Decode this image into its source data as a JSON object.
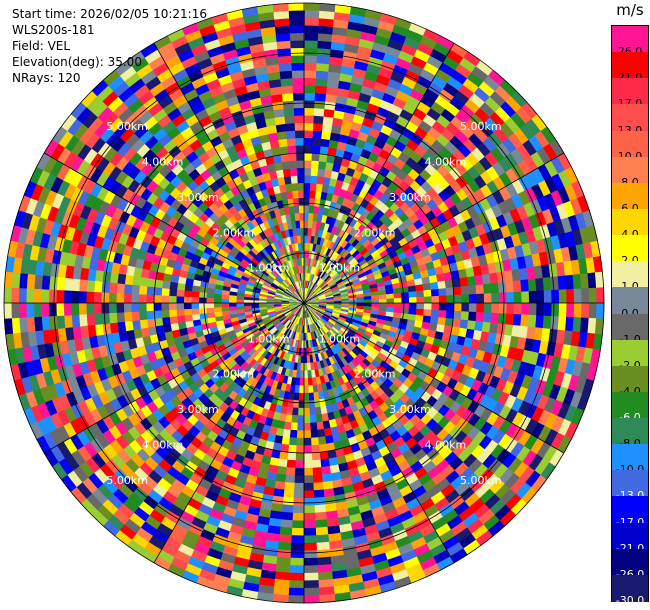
{
  "header": {
    "start_time_label": "Start time:",
    "start_time": "2026/02/05 10:21:16",
    "instrument": "WLS200s-181",
    "field_label": "Field:",
    "field": "VEL",
    "elevation_label": "Elevation(deg):",
    "elevation": "35.00",
    "nrays_label": "NRays:",
    "nrays": "120"
  },
  "colorbar": {
    "unit": "m/s",
    "levels": [
      {
        "label": "26.0",
        "color": "#ff1493"
      },
      {
        "label": "21.0",
        "color": "#ff0000"
      },
      {
        "label": "17.0",
        "color": "#ff2a4a"
      },
      {
        "label": "13.0",
        "color": "#ff4d4d"
      },
      {
        "label": "10.0",
        "color": "#ff6347"
      },
      {
        "label": "8.0",
        "color": "#ff7f50"
      },
      {
        "label": "6.0",
        "color": "#ffa500"
      },
      {
        "label": "4.0",
        "color": "#ffd700"
      },
      {
        "label": "2.0",
        "color": "#ffff00"
      },
      {
        "label": "1.0",
        "color": "#f0f0a0"
      },
      {
        "label": "0.0",
        "color": "#778899"
      },
      {
        "label": "-1.0",
        "color": "#696969"
      },
      {
        "label": "-2.0",
        "color": "#9acd32"
      },
      {
        "label": "-4.0",
        "color": "#6b8e23"
      },
      {
        "label": "-6.0",
        "color": "#228b22"
      },
      {
        "label": "-8.0",
        "color": "#2e8b57"
      },
      {
        "label": "-10.0",
        "color": "#1e90ff"
      },
      {
        "label": "-13.0",
        "color": "#4169e1"
      },
      {
        "label": "-17.0",
        "color": "#0000ff"
      },
      {
        "label": "-21.0",
        "color": "#0000cd"
      },
      {
        "label": "-26.0",
        "color": "#000080"
      },
      {
        "label": "-30.0",
        "color": "#191970"
      }
    ]
  },
  "chart_data": {
    "type": "ppi",
    "field": "VEL",
    "n_rays": 120,
    "range_max_km": 6.0,
    "range_rings_km": [
      1.0,
      2.0,
      3.0,
      4.0,
      5.0,
      6.0
    ],
    "range_ring_labels": [
      "1.00km",
      "2.00km",
      "3.00km",
      "4.00km",
      "5.00km"
    ],
    "spokes_deg": [
      0,
      30,
      60,
      90,
      120,
      150,
      180,
      210,
      240,
      270,
      300,
      330
    ],
    "vmin": -30.0,
    "vmax": 26.0,
    "n_gates": 40
  }
}
